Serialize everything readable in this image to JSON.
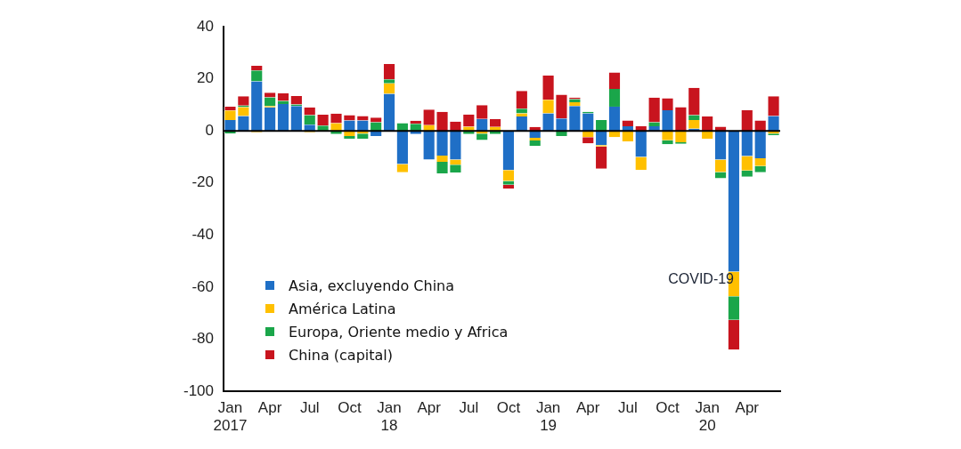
{
  "chart_data": {
    "type": "bar",
    "stacked": true,
    "legend": "bottom left",
    "categories": [
      "Jan 2017",
      null,
      null,
      "Apr",
      null,
      null,
      "Jul",
      null,
      null,
      "Oct",
      null,
      null,
      "Jan 18",
      null,
      null,
      "Apr",
      null,
      null,
      "Jul",
      null,
      null,
      "Oct",
      null,
      null,
      "Jan 19",
      null,
      null,
      "Apr",
      null,
      null,
      "Jul",
      null,
      null,
      "Oct",
      null,
      null,
      "Jan 20",
      null,
      null,
      "Apr",
      null,
      null
    ],
    "series": [
      {
        "name": "Asia, excluyendo China",
        "color": "#1f6fc6",
        "values": [
          4.2,
          5.7,
          19,
          9,
          10.3,
          9.5,
          2.4,
          0,
          0,
          4,
          4,
          -2,
          14.2,
          -12.7,
          -1.2,
          -11,
          -9.5,
          -11,
          0,
          4.6,
          0,
          -15,
          5.5,
          -2.7,
          6.7,
          4.8,
          9.5,
          6.7,
          -5.5,
          9.3,
          1.8,
          -10,
          1.8,
          7.9,
          0,
          0.8,
          0,
          -11,
          -54,
          -9.7,
          -10.5,
          5.7
        ]
      },
      {
        "name": "América Latina",
        "color": "#ffc000",
        "values": [
          3.6,
          3.4,
          -0.5,
          0.5,
          0,
          0,
          -0.5,
          0,
          3,
          -2,
          -1,
          0,
          4,
          -3.2,
          0,
          2.2,
          -2.4,
          -2,
          1.6,
          -1,
          1.5,
          -4.2,
          1.2,
          -1,
          5.2,
          0,
          1.5,
          -2.4,
          -0.5,
          -2.4,
          -4,
          -5,
          0,
          -3.6,
          -4.4,
          3.4,
          -3,
          -4.8,
          -9.5,
          -5.5,
          -3,
          -1
        ]
      },
      {
        "name": "Europa, Oriente medio y Africa",
        "color": "#1aa64a",
        "values": [
          -1,
          0.6,
          4.2,
          3.4,
          1.2,
          0.6,
          3.6,
          2,
          -1.2,
          -1,
          -2,
          3.3,
          1.6,
          3,
          2.7,
          0,
          -4.4,
          -3,
          -1.2,
          -2.5,
          -1.2,
          -1.5,
          1.8,
          -2,
          0,
          -2,
          1.2,
          0.6,
          4.2,
          6.8,
          0,
          0,
          1.5,
          -1.5,
          -0.6,
          1.8,
          0,
          -2.4,
          -9,
          -2.4,
          -2.4,
          -0.6
        ]
      },
      {
        "name": "China (capital)",
        "color": "#c8141e",
        "values": [
          1.5,
          3.6,
          1.8,
          1.8,
          2.9,
          3.3,
          3,
          4.2,
          3.6,
          2,
          1.7,
          1.8,
          5.9,
          0,
          1.2,
          6,
          7.3,
          3.6,
          4.7,
          5.3,
          3,
          -1.5,
          6.8,
          1.5,
          9.3,
          9.1,
          0.6,
          -2.4,
          -8.5,
          6.3,
          2.2,
          1.8,
          9.5,
          4.6,
          9.1,
          10.5,
          5.5,
          1.6,
          -11.5,
          7.9,
          4,
          7.6
        ]
      }
    ],
    "ylim": [
      -100,
      40
    ],
    "yticks": [
      -100,
      -80,
      -60,
      -40,
      -20,
      0,
      20,
      40
    ],
    "ref_lines": [
      {
        "axis": "y",
        "value": 0,
        "color": "#000000"
      }
    ],
    "annotations": [
      "COVID-19"
    ]
  }
}
